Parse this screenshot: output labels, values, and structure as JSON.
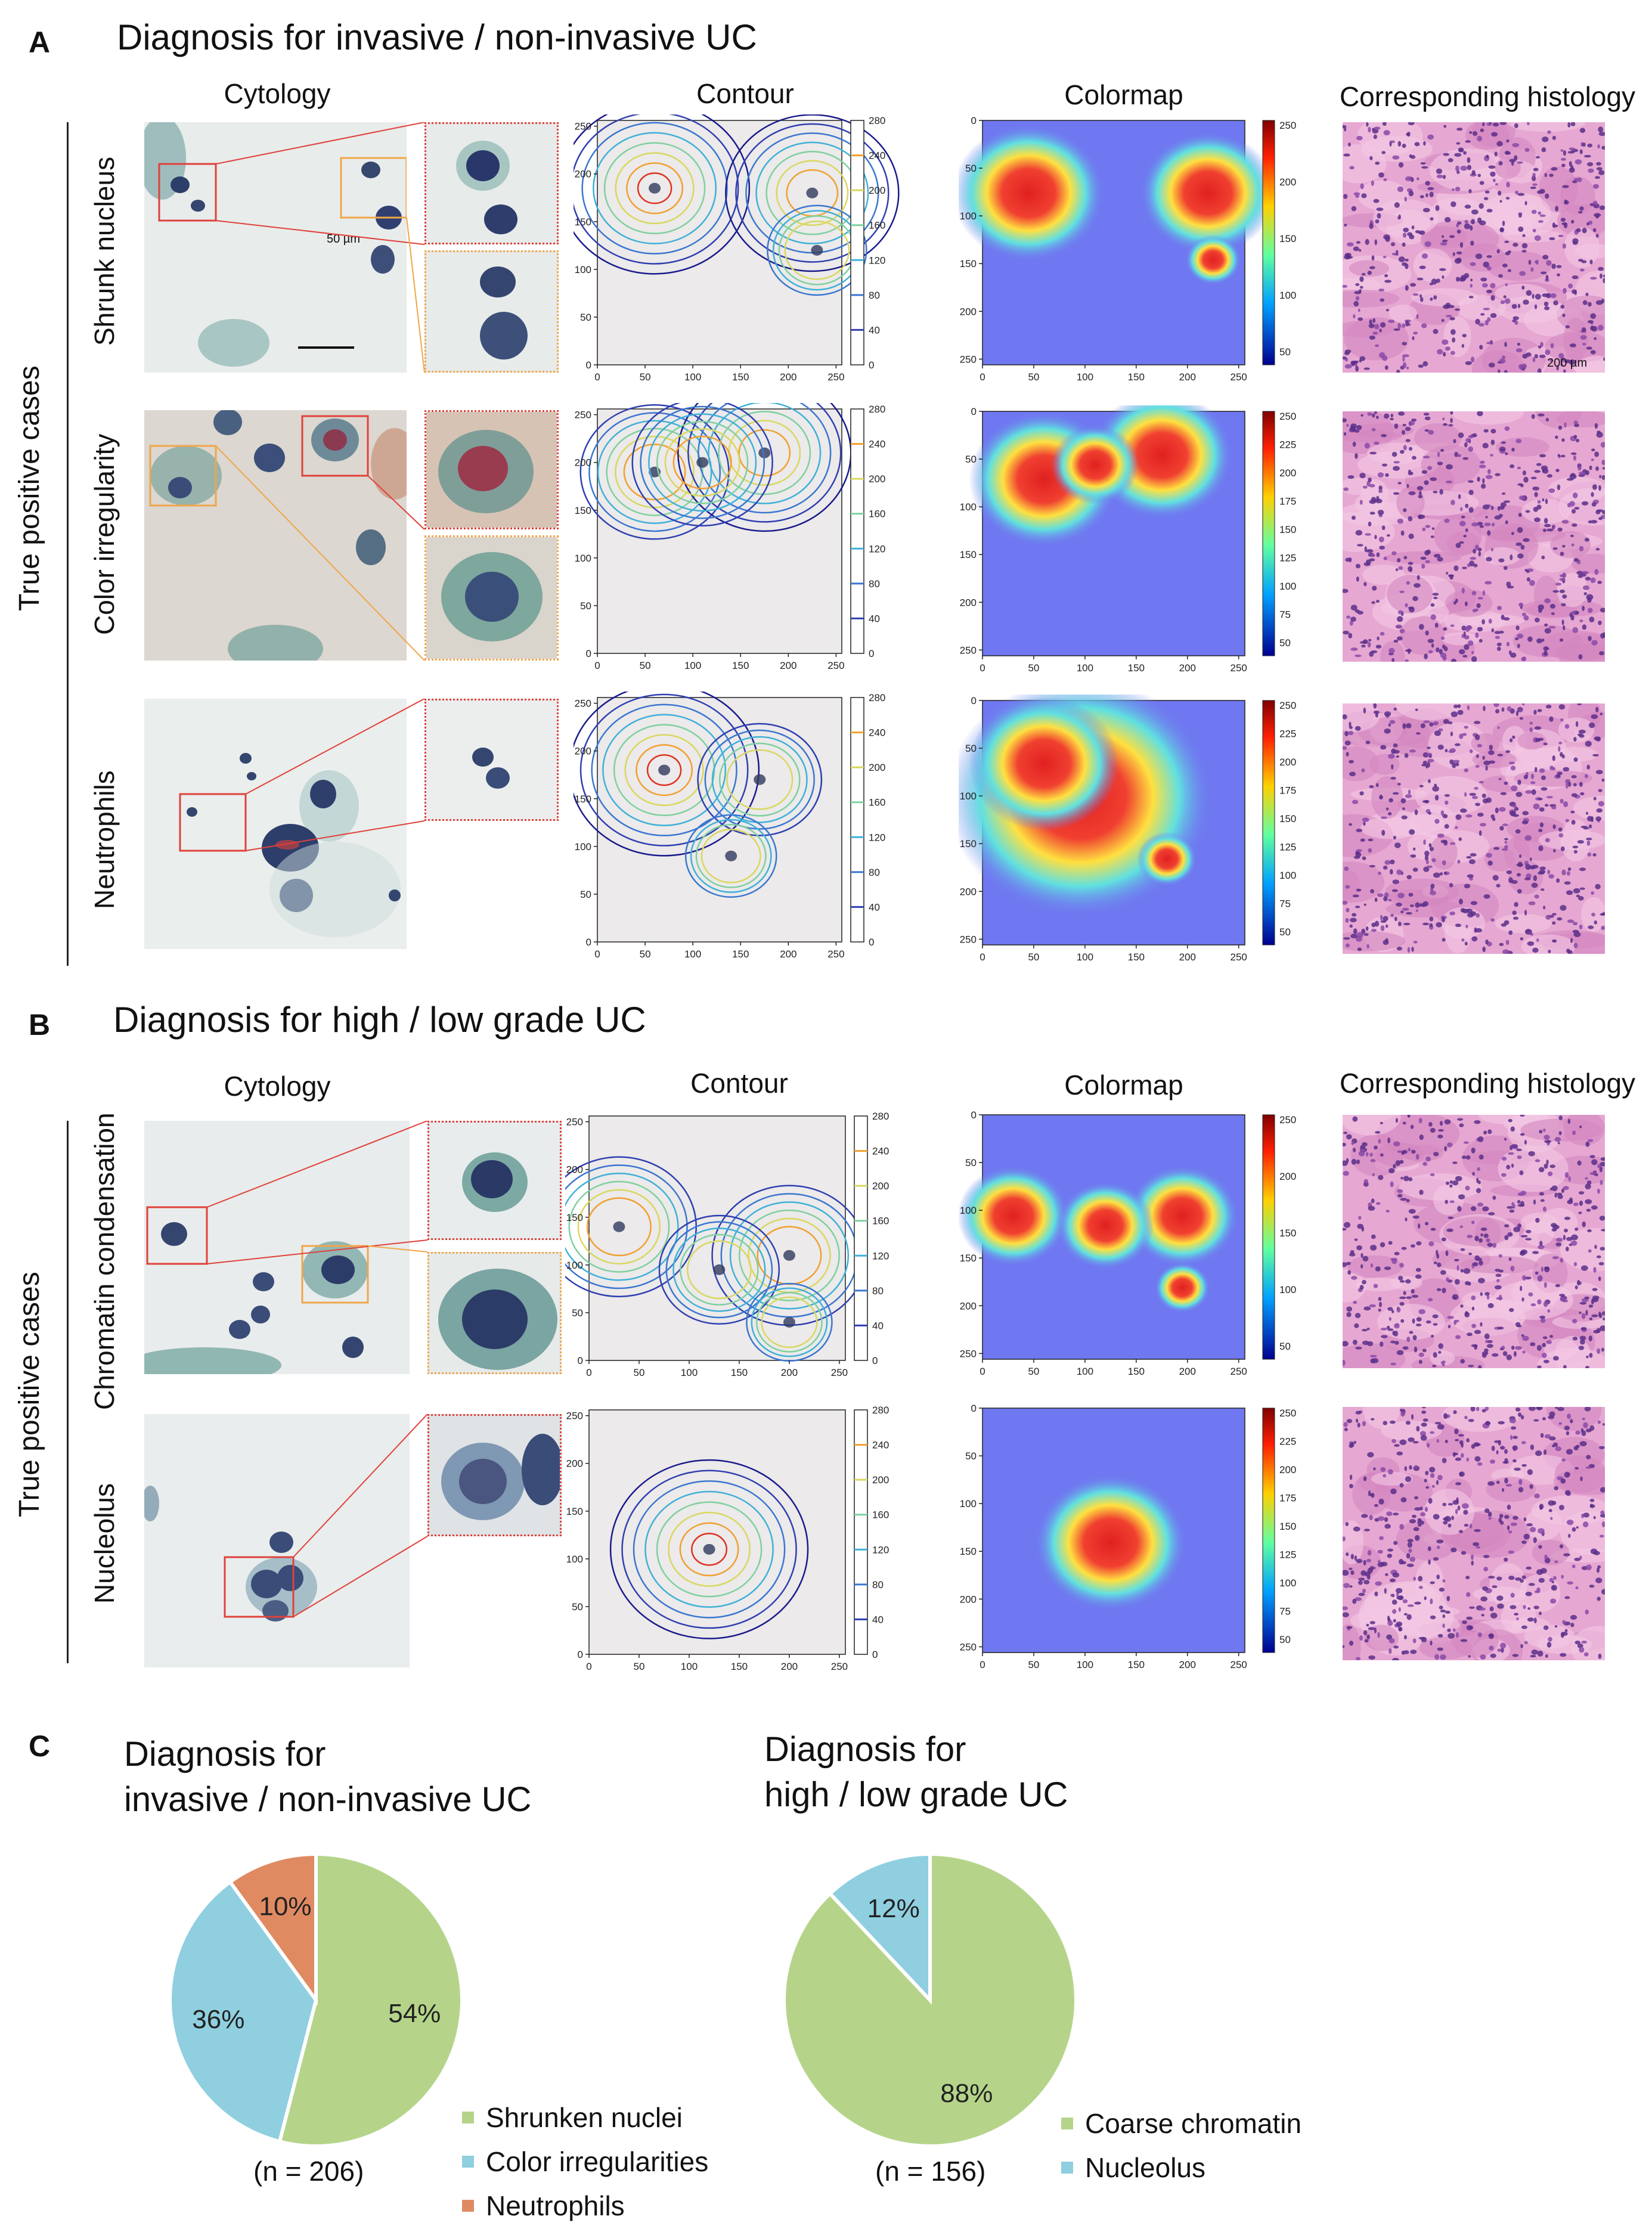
{
  "panelA": {
    "letter": "A",
    "title": "Diagnosis for invasive / non-invasive UC",
    "columns": [
      "Cytology",
      "Contour",
      "Colormap",
      "Corresponding histology"
    ],
    "side_label": "True positive cases",
    "rows": [
      "Shrunk nucleus",
      "Color irregularity",
      "Neutrophils"
    ],
    "scalebar_cytology": "50 µm",
    "scalebar_histology": "200 µm"
  },
  "panelB": {
    "letter": "B",
    "title": "Diagnosis for high / low grade UC",
    "columns": [
      "Cytology",
      "Contour",
      "Colormap",
      "Corresponding histology"
    ],
    "side_label": "True positive cases",
    "rows": [
      "Chromatin condensation",
      "Nucleolus"
    ]
  },
  "contour_axis": {
    "ticks": [
      "0",
      "50",
      "100",
      "150",
      "200",
      "250"
    ],
    "colorbar": [
      "280",
      "240",
      "200",
      "160",
      "120",
      "80",
      "40",
      "0"
    ]
  },
  "colormap_axis": {
    "ticks": [
      "0",
      "50",
      "100",
      "150",
      "200",
      "250"
    ],
    "colorbar_a1": [
      "250",
      "200",
      "150",
      "100",
      "50"
    ],
    "colorbar_fine": [
      "250",
      "225",
      "200",
      "175",
      "150",
      "125",
      "100",
      "75",
      "50"
    ]
  },
  "colors": {
    "green": "#b5d48a",
    "blue": "#8fcfe0",
    "orange": "#e08a62",
    "red_box": "#e0413a",
    "orange_box": "#f0a64a"
  },
  "panelC": {
    "letter": "C",
    "pie1": {
      "title_line1": "Diagnosis for",
      "title_line2": "invasive / non-invasive UC",
      "n": "(n = 206)"
    },
    "pie2": {
      "title_line1": "Diagnosis for",
      "title_line2": "high / low grade UC",
      "n": "(n = 156)"
    }
  },
  "chart_data": [
    {
      "type": "pie",
      "title": "Diagnosis for invasive / non-invasive UC",
      "categories": [
        "Shrunken nuclei",
        "Color irregularities",
        "Neutrophils"
      ],
      "values": [
        54,
        36,
        10
      ],
      "labels": [
        "54%",
        "36%",
        "10%"
      ],
      "colors": [
        "#b5d48a",
        "#8fcfe0",
        "#e08a62"
      ],
      "n": "(n = 206)",
      "legend": "bottom-right"
    },
    {
      "type": "pie",
      "title": "Diagnosis for high / low grade UC",
      "categories": [
        "Coarse chromatin",
        "Nucleolus"
      ],
      "values": [
        88,
        12
      ],
      "labels": [
        "88%",
        "12%"
      ],
      "colors": [
        "#b5d48a",
        "#8fcfe0"
      ],
      "n": "(n = 156)",
      "legend": "bottom-right"
    }
  ]
}
